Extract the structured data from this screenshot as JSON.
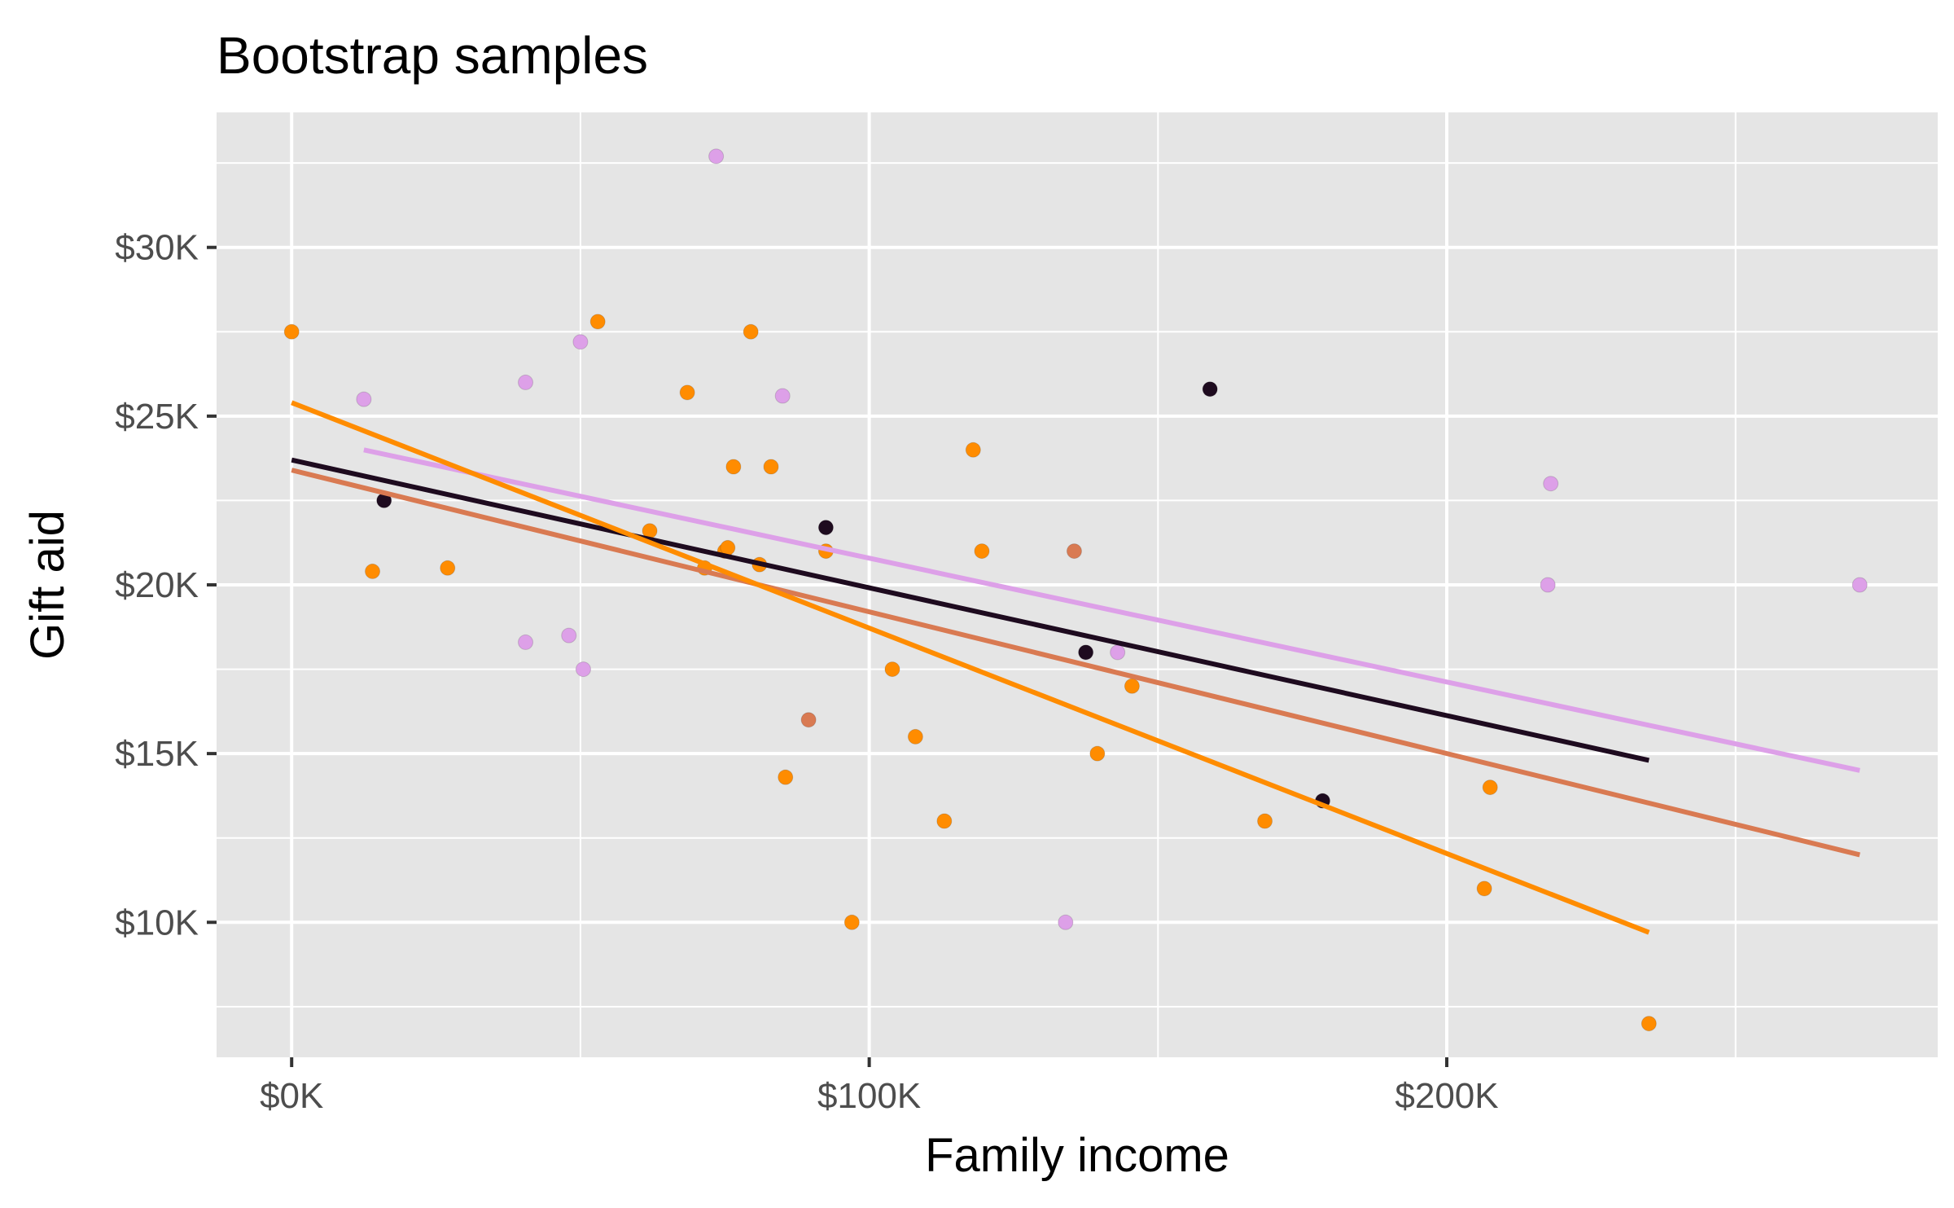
{
  "chart_data": {
    "type": "scatter",
    "title": "Bootstrap samples",
    "xlabel": "Family income",
    "ylabel": "Gift aid",
    "xlim": [
      -13000,
      285000
    ],
    "ylim": [
      6000,
      34000
    ],
    "x_ticks": [
      {
        "value": 0,
        "label": "$0K"
      },
      {
        "value": 100000,
        "label": "$100K"
      },
      {
        "value": 200000,
        "label": "$200K"
      }
    ],
    "y_ticks": [
      {
        "value": 10000,
        "label": "$10K"
      },
      {
        "value": 15000,
        "label": "$15K"
      },
      {
        "value": 20000,
        "label": "$20K"
      },
      {
        "value": 25000,
        "label": "$25K"
      },
      {
        "value": 30000,
        "label": "$30K"
      }
    ],
    "grid": true,
    "legend": "none",
    "series": [
      {
        "color": "#1e0b1f",
        "points": [
          [
            16000,
            22500
          ],
          [
            92500,
            21700
          ],
          [
            159000,
            25800
          ],
          [
            137500,
            18000
          ],
          [
            178500,
            13600
          ]
        ],
        "fit": {
          "x": [
            0,
            235000
          ],
          "y": [
            23700,
            14800
          ]
        }
      },
      {
        "color": "#dda0e8",
        "points": [
          [
            73500,
            32700
          ],
          [
            12500,
            25500
          ],
          [
            40500,
            26000
          ],
          [
            50000,
            27200
          ],
          [
            85000,
            25600
          ],
          [
            40500,
            18300
          ],
          [
            48000,
            18500
          ],
          [
            50500,
            17500
          ],
          [
            143000,
            18000
          ],
          [
            218000,
            23000
          ],
          [
            217500,
            20000
          ],
          [
            271500,
            20000
          ],
          [
            134000,
            10000
          ]
        ],
        "fit": {
          "x": [
            12500,
            271500
          ],
          "y": [
            24000,
            14500
          ]
        }
      },
      {
        "color": "#d97a52",
        "points": [
          [
            89500,
            16000
          ],
          [
            135500,
            21000
          ]
        ],
        "fit": {
          "x": [
            0,
            271500
          ],
          "y": [
            23400,
            12000
          ]
        }
      },
      {
        "color": "#ff8c00",
        "points": [
          [
            0,
            27500
          ],
          [
            53000,
            27800
          ],
          [
            79500,
            27500
          ],
          [
            68500,
            25700
          ],
          [
            76500,
            23500
          ],
          [
            83000,
            23500
          ],
          [
            118000,
            24000
          ],
          [
            14000,
            20400
          ],
          [
            27000,
            20500
          ],
          [
            62000,
            21600
          ],
          [
            71500,
            20500
          ],
          [
            75000,
            21000
          ],
          [
            75500,
            21100
          ],
          [
            81000,
            20600
          ],
          [
            92500,
            21000
          ],
          [
            119500,
            21000
          ],
          [
            104000,
            17500
          ],
          [
            145500,
            17000
          ],
          [
            108000,
            15500
          ],
          [
            139500,
            15000
          ],
          [
            85500,
            14300
          ],
          [
            113000,
            13000
          ],
          [
            168500,
            13000
          ],
          [
            207500,
            14000
          ],
          [
            97000,
            10000
          ],
          [
            206500,
            11000
          ],
          [
            235000,
            7000
          ]
        ],
        "fit": {
          "x": [
            0,
            235000
          ],
          "y": [
            25400,
            9700
          ]
        }
      }
    ]
  }
}
